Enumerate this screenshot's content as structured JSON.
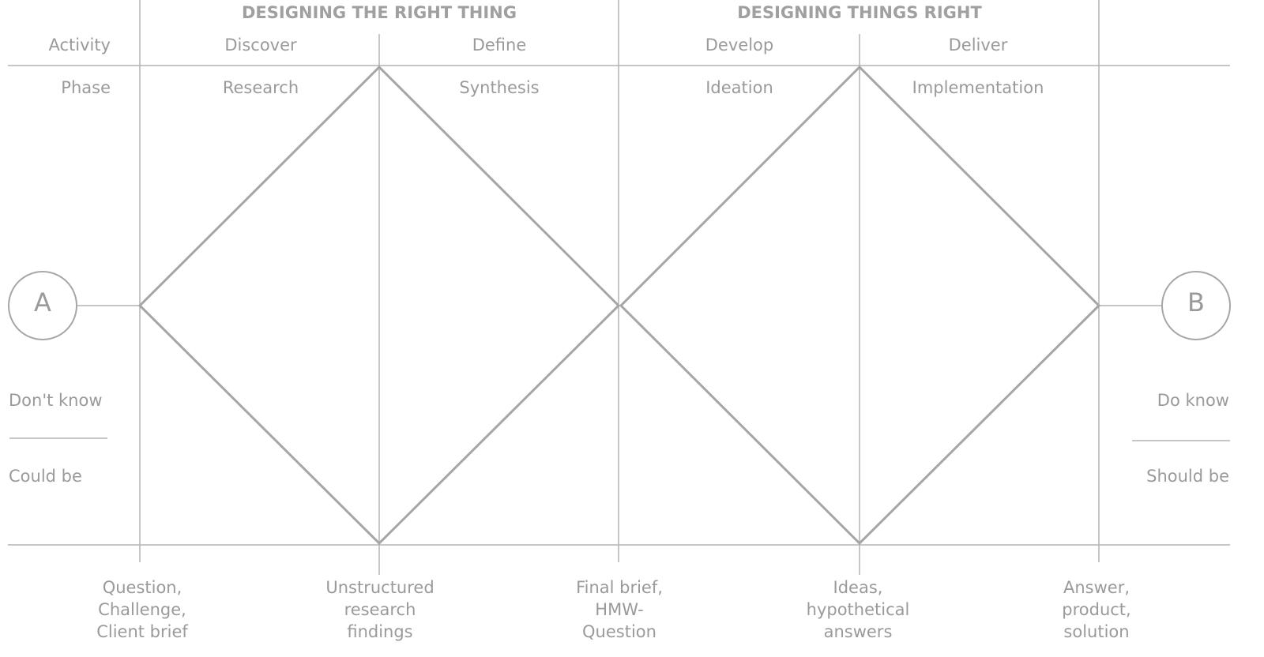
{
  "headers": [
    "DESIGNING THE RIGHT THING",
    "DESIGNING THINGS RIGHT"
  ],
  "rows": {
    "activity": {
      "label": "Activity",
      "items": [
        "Discover",
        "Define",
        "Develop",
        "Deliver"
      ]
    },
    "phase": {
      "label": "Phase",
      "items": [
        "Research",
        "Synthesis",
        "Ideation",
        "Implementation"
      ]
    }
  },
  "start": {
    "label": "A",
    "top": "Don't know",
    "bottom": "Could be"
  },
  "end": {
    "label": "B",
    "top": "Do know",
    "bottom": "Should be"
  },
  "milestones": [
    [
      "Question,",
      "Challenge,",
      "Client brief"
    ],
    [
      "Unstructured",
      "research",
      "findings"
    ],
    [
      "Final brief,",
      "HMW-",
      "Question"
    ],
    [
      "Ideas,",
      "hypothetical",
      "answers"
    ],
    [
      "Answer,",
      "product,",
      "solution"
    ]
  ]
}
